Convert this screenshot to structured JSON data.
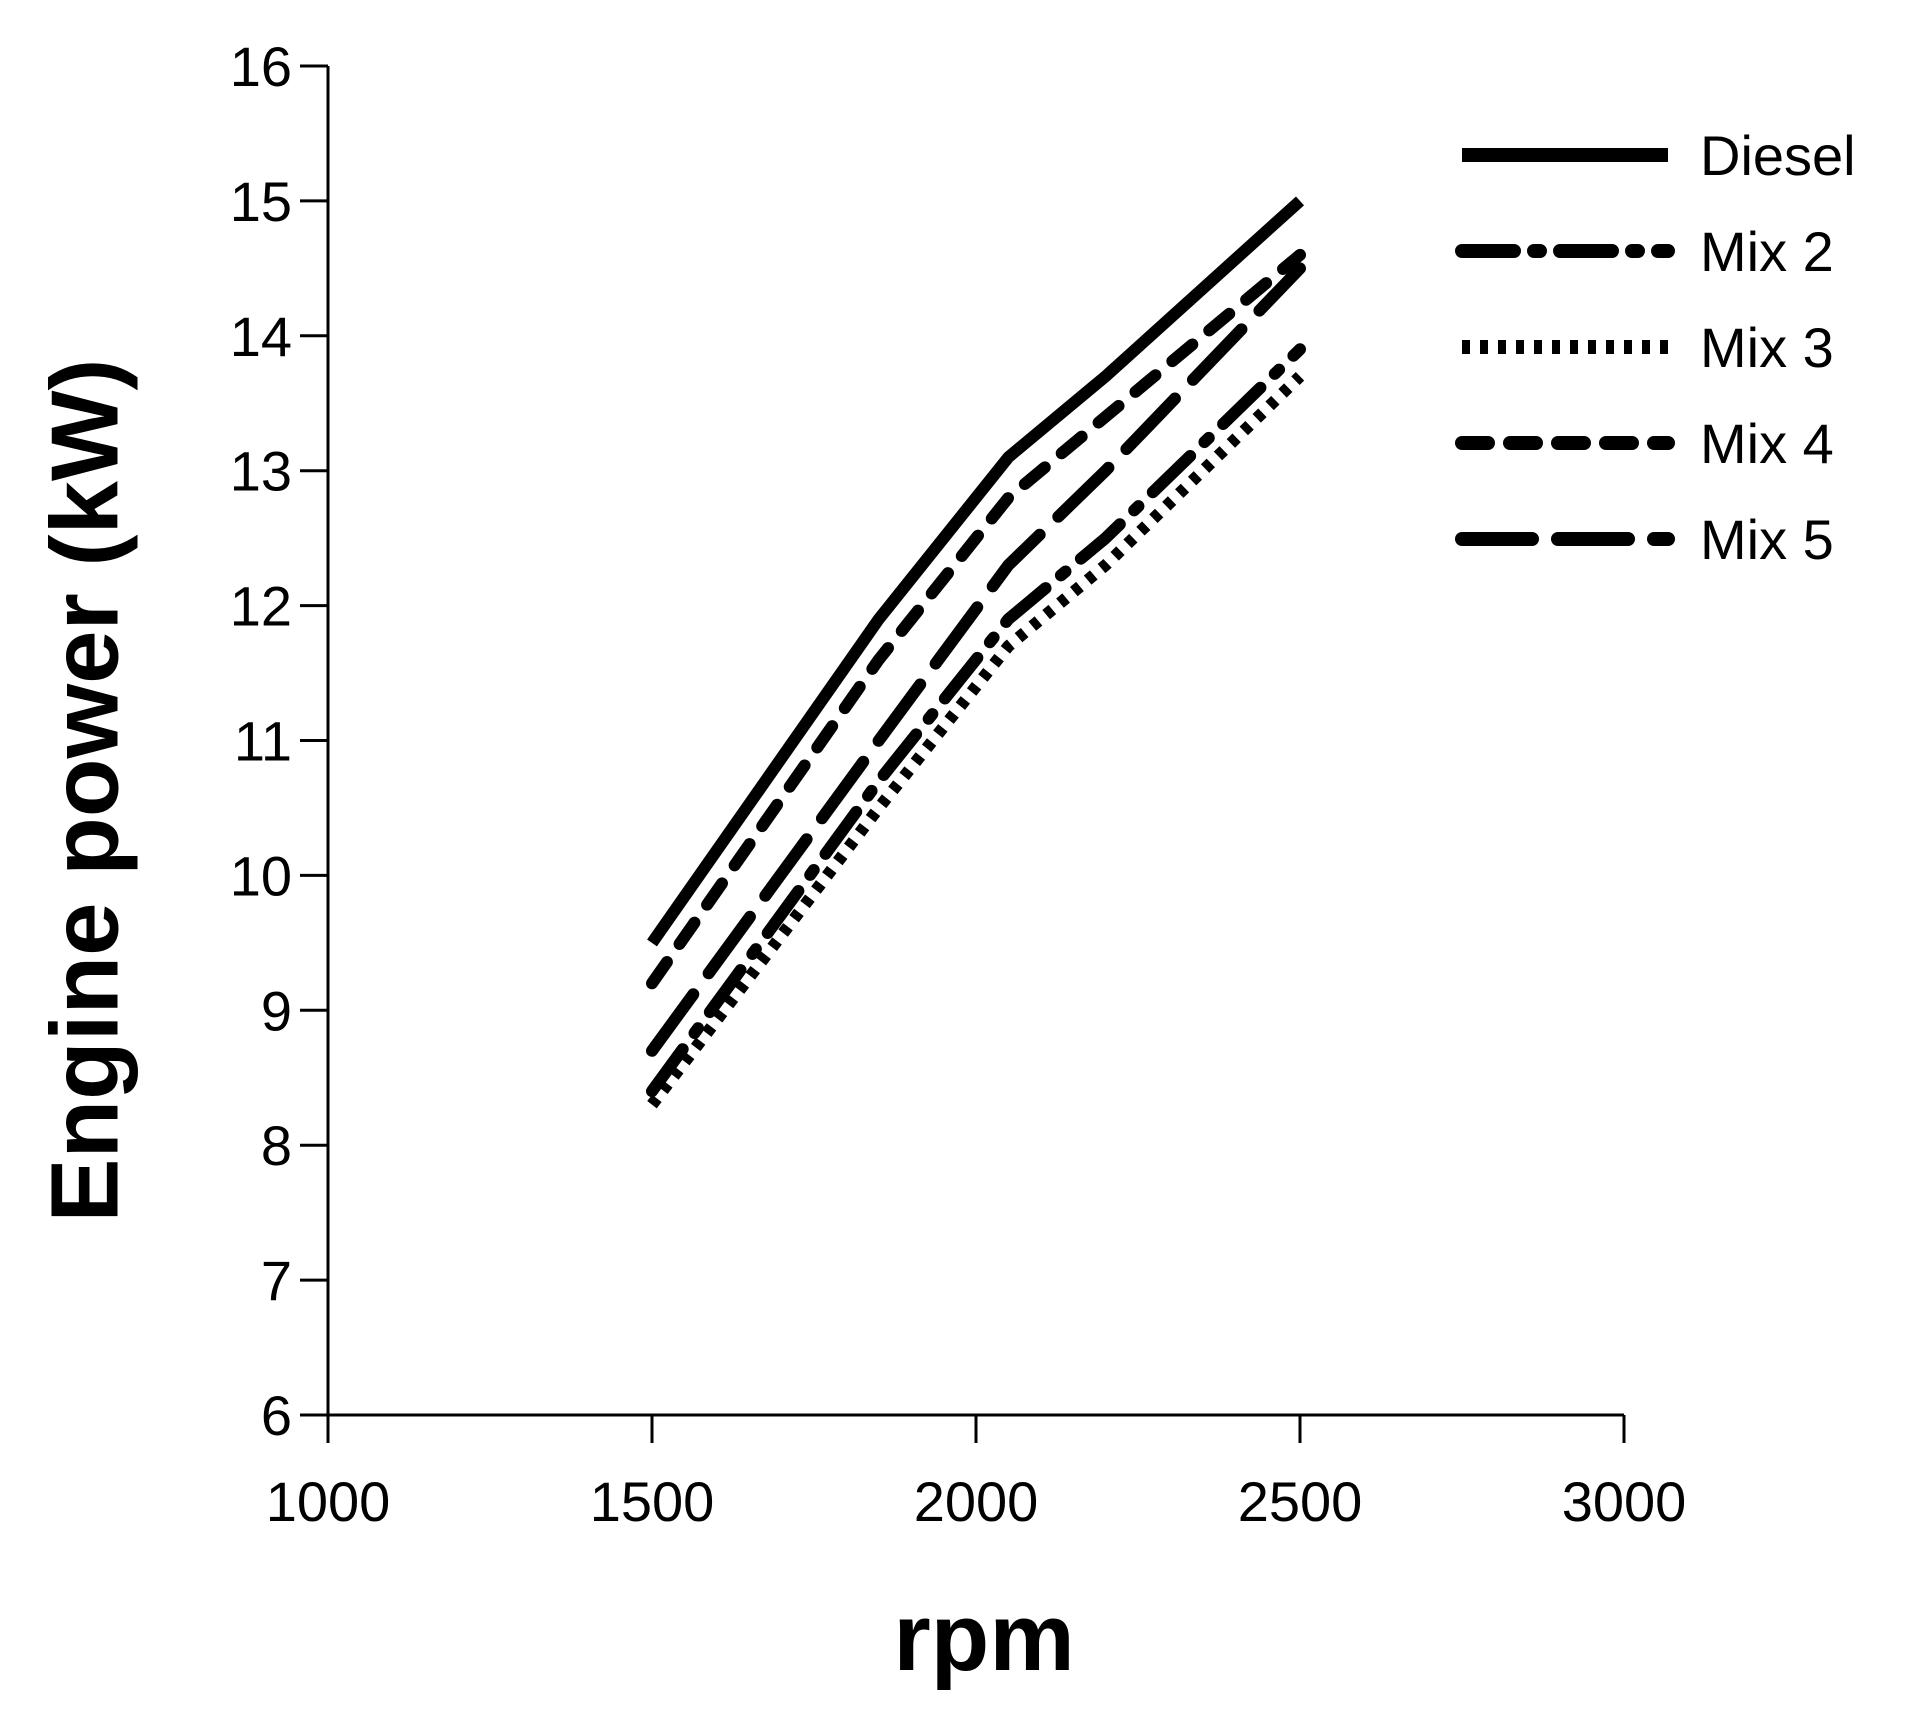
{
  "chart_data": {
    "type": "line",
    "title": "",
    "xlabel": "rpm",
    "ylabel": "Engine power (kW)",
    "xlim": [
      1000,
      3000
    ],
    "ylim": [
      6,
      16
    ],
    "x_ticks": [
      "1000",
      "1500",
      "2000",
      "2500",
      "3000"
    ],
    "y_ticks": [
      "6",
      "7",
      "8",
      "9",
      "10",
      "11",
      "12",
      "13",
      "14",
      "15",
      "16"
    ],
    "grid": false,
    "legend_position": "top-right",
    "x": [
      1500,
      1850,
      2050,
      2200,
      2500
    ],
    "series": [
      {
        "name": "Diesel",
        "style": "solid",
        "values": [
          9.5,
          11.9,
          13.1,
          13.7,
          15.0
        ]
      },
      {
        "name": "Mix 2",
        "style": "dash-dot",
        "values": [
          8.4,
          10.7,
          11.9,
          12.5,
          13.9
        ]
      },
      {
        "name": "Mix 3",
        "style": "dotted",
        "values": [
          8.3,
          10.5,
          11.7,
          12.3,
          13.7
        ]
      },
      {
        "name": "Mix 4",
        "style": "dashed",
        "values": [
          9.2,
          11.6,
          12.8,
          13.4,
          14.6
        ]
      },
      {
        "name": "Mix 5",
        "style": "long-dash",
        "values": [
          8.7,
          11.0,
          12.3,
          13.0,
          14.5
        ]
      }
    ],
    "colors": {
      "line": "#000000",
      "axis": "#000000",
      "background": "#ffffff"
    }
  }
}
